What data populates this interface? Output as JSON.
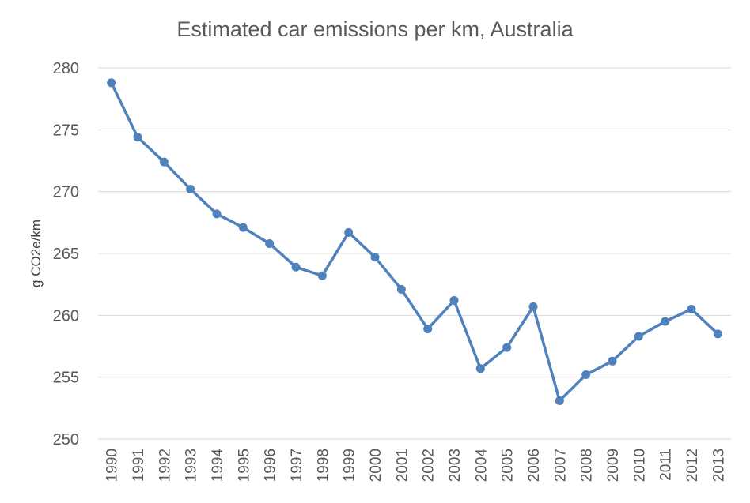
{
  "chart_data": {
    "type": "line",
    "title": "Estimated car emissions per km, Australia",
    "xlabel": "",
    "ylabel": "g CO2e/km",
    "ylim": [
      250,
      280
    ],
    "yticks": [
      250,
      255,
      260,
      265,
      270,
      275,
      280
    ],
    "grid": true,
    "legend": "none",
    "categories": [
      "1990",
      "1991",
      "1992",
      "1993",
      "1994",
      "1995",
      "1996",
      "1997",
      "1998",
      "1999",
      "2000",
      "2001",
      "2002",
      "2003",
      "2004",
      "2005",
      "2006",
      "2007",
      "2008",
      "2009",
      "2010",
      "2011",
      "2012",
      "2013"
    ],
    "series": [
      {
        "name": "g CO2e/km",
        "color": "#4f81bd",
        "values": [
          278.8,
          274.4,
          272.4,
          270.2,
          268.2,
          267.1,
          265.8,
          263.9,
          263.2,
          266.7,
          264.7,
          262.1,
          258.9,
          261.2,
          255.7,
          257.4,
          260.7,
          253.1,
          255.2,
          256.3,
          258.3,
          259.5,
          260.5,
          258.5
        ]
      }
    ]
  }
}
